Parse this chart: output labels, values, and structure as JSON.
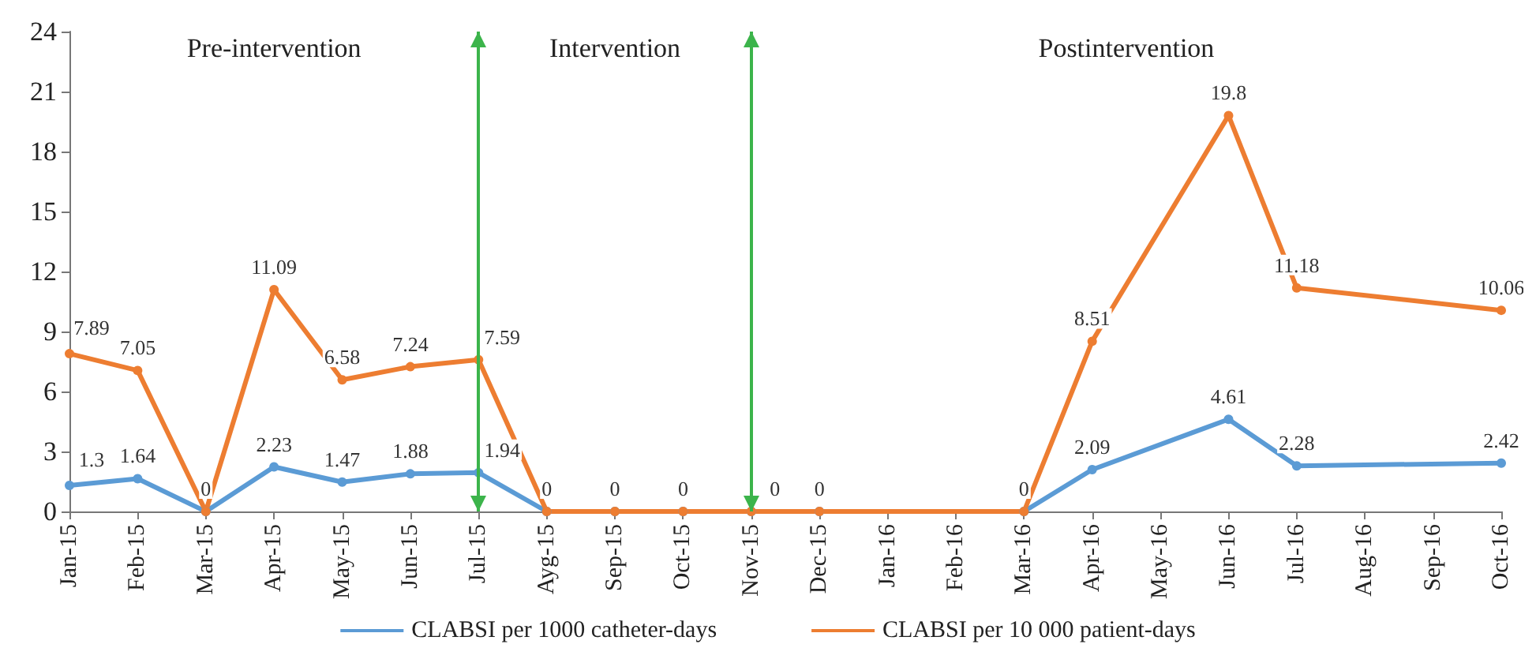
{
  "chart_data": {
    "type": "line",
    "categories": [
      "Jan-15",
      "Feb-15",
      "Mar-15",
      "Apr-15",
      "May-15",
      "Jun-15",
      "Jul-15",
      "Ayg-15",
      "Sep-15",
      "Oct-15",
      "Nov-15",
      "Dec-15",
      "Jan-16",
      "Feb-16",
      "Mar-16",
      "Apr-16",
      "May-16",
      "Jun-16",
      "Jul-16",
      "Aug-16",
      "Sep-16",
      "Oct-16"
    ],
    "series": [
      {
        "name": "CLABSI per 1000 catheter-days",
        "color": "#5b9bd5",
        "values": [
          1.3,
          1.64,
          0,
          2.23,
          1.47,
          1.88,
          1.94,
          0,
          0,
          0,
          0,
          0,
          null,
          null,
          0,
          2.09,
          null,
          4.61,
          2.28,
          null,
          null,
          2.42
        ],
        "value_labels": [
          "1.3",
          "1.64",
          null,
          "2.23",
          "1.47",
          "1.88",
          "1.94",
          null,
          null,
          null,
          null,
          null,
          null,
          null,
          null,
          "2.09",
          null,
          "4.61",
          "2.28",
          null,
          null,
          "2.42"
        ]
      },
      {
        "name": "CLABSI per 10 000 patient-days",
        "color": "#ed7d31",
        "values": [
          7.89,
          7.05,
          0,
          11.09,
          6.58,
          7.24,
          7.59,
          0,
          0,
          0,
          0,
          0,
          null,
          null,
          0,
          8.51,
          null,
          19.8,
          11.18,
          null,
          null,
          10.06
        ],
        "value_labels": [
          "7.89",
          "7.05",
          "0",
          "11.09",
          "6.58",
          "7.24",
          "7.59",
          "0",
          "0",
          "0",
          "0",
          "0",
          null,
          null,
          "0",
          "8.51",
          null,
          "19.8",
          "11.18",
          null,
          null,
          "10.06"
        ]
      }
    ],
    "ylim": [
      0,
      24
    ],
    "yticks": [
      0,
      3,
      6,
      9,
      12,
      15,
      18,
      21,
      24
    ],
    "grid": false,
    "legend": "bottom",
    "marker": "circle",
    "line_style": "solid",
    "ref_lines": [
      {
        "axis": "x",
        "value": "Jul-15",
        "color": "#3cb44b"
      },
      {
        "axis": "x",
        "value": "Nov-15",
        "color": "#3cb44b"
      }
    ],
    "annotations": [
      "Pre-intervention",
      "Intervention",
      "Postintervention"
    ]
  }
}
